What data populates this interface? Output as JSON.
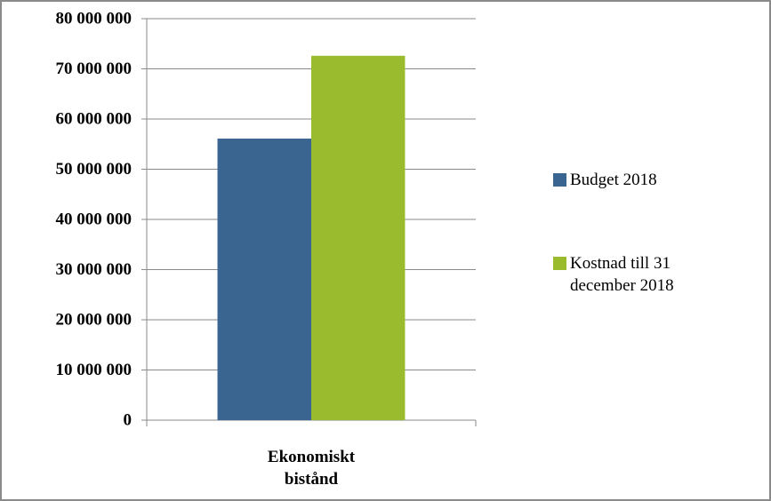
{
  "chart_data": {
    "type": "bar",
    "categories": [
      "Ekonomiskt bistånd"
    ],
    "series": [
      {
        "name": "Budget 2018",
        "color": "#3a6591",
        "values": [
          56100000
        ]
      },
      {
        "name": "Kostnad till 31 december 2018",
        "color": "#9bbb2f",
        "values": [
          72600000
        ]
      }
    ],
    "ylim": [
      0,
      80000000
    ],
    "yticks": [
      {
        "value": 0,
        "label": "0"
      },
      {
        "value": 10000000,
        "label": "10 000 000"
      },
      {
        "value": 20000000,
        "label": "20 000 000"
      },
      {
        "value": 30000000,
        "label": "30 000 000"
      },
      {
        "value": 40000000,
        "label": "40 000 000"
      },
      {
        "value": 50000000,
        "label": "50 000 000"
      },
      {
        "value": 60000000,
        "label": "60 000 000"
      },
      {
        "value": 70000000,
        "label": "70 000 000"
      },
      {
        "value": 80000000,
        "label": "80 000 000"
      }
    ],
    "grid": true,
    "legend": "right"
  }
}
